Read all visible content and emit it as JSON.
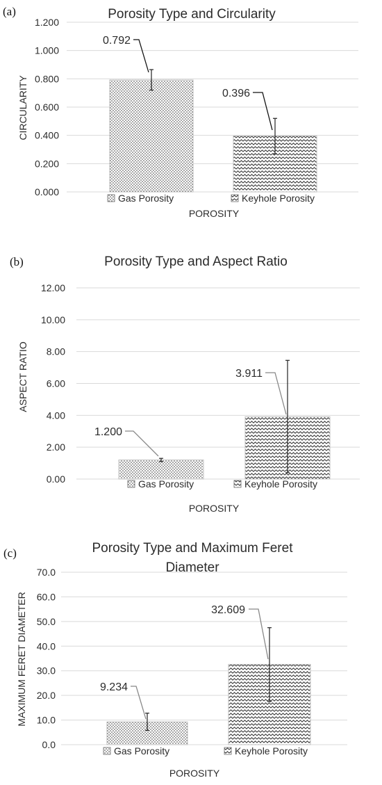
{
  "chart_data": [
    {
      "panel": "(a)",
      "type": "bar",
      "title_lines": [
        "Porosity Type and Circularity"
      ],
      "xlabel": "POROSITY",
      "ylabel": "CIRCULARITY",
      "categories": [
        "Gas Porosity",
        "Keyhole Porosity"
      ],
      "values": [
        0.792,
        0.396
      ],
      "value_labels": [
        "0.792",
        "0.396"
      ],
      "error_bars": [
        {
          "low": 0.72,
          "high": 0.865
        },
        {
          "low": 0.27,
          "high": 0.52
        }
      ],
      "ylim": [
        0,
        1.2
      ],
      "yticks": [
        "0.000",
        "0.200",
        "0.400",
        "0.600",
        "0.800",
        "1.000",
        "1.200"
      ],
      "grid": true,
      "legend": "bottom"
    },
    {
      "panel": "(b)",
      "type": "bar",
      "title_lines": [
        "Porosity Type and Aspect Ratio"
      ],
      "xlabel": "POROSITY",
      "ylabel": "ASPECT RATIO",
      "categories": [
        "Gas Porosity",
        "Keyhole Porosity"
      ],
      "values": [
        1.2,
        3.911
      ],
      "value_labels": [
        "1.200",
        "3.911"
      ],
      "error_bars": [
        {
          "low": 1.1,
          "high": 1.3
        },
        {
          "low": 0.4,
          "high": 7.45
        }
      ],
      "ylim": [
        0,
        12
      ],
      "yticks": [
        "0.00",
        "2.00",
        "4.00",
        "6.00",
        "8.00",
        "10.00",
        "12.00"
      ],
      "grid": true,
      "legend": "bottom"
    },
    {
      "panel": "(c)",
      "type": "bar",
      "title_lines": [
        "Porosity Type and Maximum Feret",
        "Diameter"
      ],
      "xlabel": "POROSITY",
      "ylabel": "MAXIMUM FERET DIAMETER",
      "categories": [
        "Gas Porosity",
        "Keyhole Porosity"
      ],
      "values": [
        9.234,
        32.609
      ],
      "value_labels": [
        "9.234",
        "32.609"
      ],
      "error_bars": [
        {
          "low": 5.8,
          "high": 12.8
        },
        {
          "low": 17.5,
          "high": 47.5
        }
      ],
      "ylim": [
        0,
        70
      ],
      "yticks": [
        "0.0",
        "10.0",
        "20.0",
        "30.0",
        "40.0",
        "50.0",
        "60.0",
        "70.0"
      ],
      "grid": true,
      "legend": "bottom"
    }
  ],
  "colors": {
    "grid": "#d9d9d9",
    "bar_border": "#bfbfbf",
    "pattern": "#333333",
    "error_bar": "#222222",
    "leader_line": "#888888"
  }
}
